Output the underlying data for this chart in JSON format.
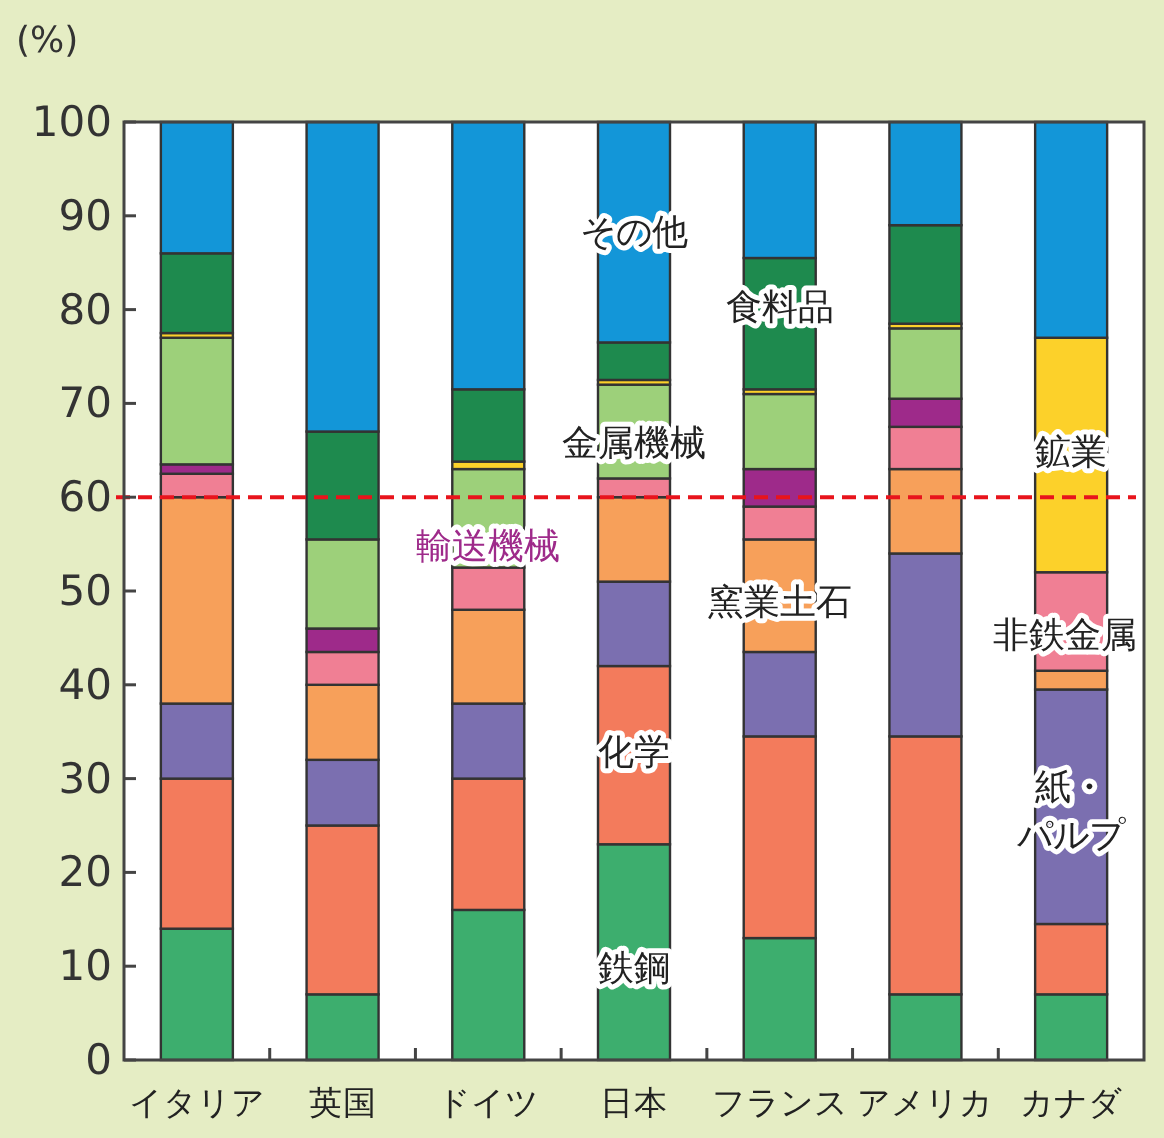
{
  "chart_data": {
    "type": "bar",
    "stacked": true,
    "ylabel": "(%)",
    "categories": [
      "イタリア",
      "英国",
      "ドイツ",
      "日本",
      "フランス",
      "アメリカ",
      "カナダ"
    ],
    "ylim": [
      0,
      100
    ],
    "yticks": [
      0,
      10,
      20,
      30,
      40,
      50,
      60,
      70,
      80,
      90,
      100
    ],
    "series": [
      {
        "name": "鉄鋼",
        "color": "#3dae6e",
        "values": [
          14,
          7,
          16,
          23,
          13,
          7,
          7
        ]
      },
      {
        "name": "化学",
        "color": "#f37b5c",
        "values": [
          16,
          18,
          14,
          19,
          21.5,
          27.5,
          7.5
        ]
      },
      {
        "name": "紙・パルプ",
        "color": "#7b6fb0",
        "values": [
          8,
          7,
          8,
          9,
          9,
          19.5,
          25
        ]
      },
      {
        "name": "窯業土石",
        "color": "#f7a05a",
        "values": [
          22,
          8,
          10,
          9,
          12,
          9,
          2
        ]
      },
      {
        "name": "非鉄金属",
        "color": "#f07f94",
        "values": [
          2.5,
          3.5,
          4.5,
          2,
          3.5,
          4.5,
          10.5
        ]
      },
      {
        "name": "輸送機械",
        "color": "#9e2a8a",
        "values": [
          1,
          2.5,
          null,
          null,
          4,
          3,
          null
        ]
      },
      {
        "name": "金属機械",
        "color": "#9dd07a",
        "values": [
          13.5,
          9.5,
          10.5,
          10,
          8,
          7.5,
          null
        ]
      },
      {
        "name": "鉱業",
        "color": "#fcd12a",
        "values": [
          0.5,
          null,
          0.8,
          0.5,
          0.5,
          0.5,
          25
        ]
      },
      {
        "name": "食料品",
        "color": "#1e8a4e",
        "values": [
          8.5,
          11.5,
          7.7,
          4,
          14,
          10.5,
          null
        ]
      },
      {
        "name": "その他",
        "color": "#1396d8",
        "values": [
          14,
          33,
          28.5,
          23.5,
          14.5,
          11,
          23
        ]
      }
    ],
    "ref_lines": [
      {
        "axis": "y",
        "value": 60,
        "color": "#e8141c",
        "line_style": "dashed"
      }
    ]
  }
}
